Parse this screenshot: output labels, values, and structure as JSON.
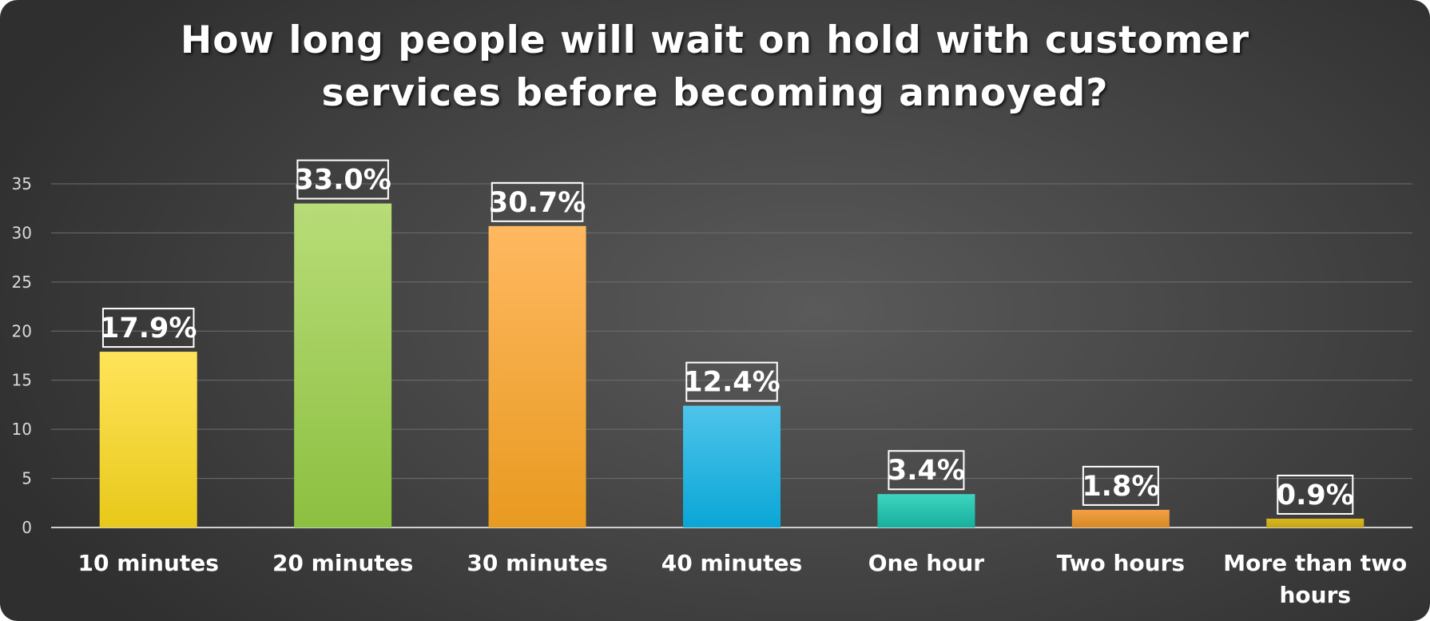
{
  "chart_data": {
    "type": "bar",
    "title_lines": [
      "How long people will wait on hold with customer",
      "services before becoming annoyed?"
    ],
    "xlabel": "",
    "ylabel": "",
    "categories": [
      "10 minutes",
      "20 minutes",
      "30 minutes",
      "40 minutes",
      "One hour",
      "Two hours",
      "More than two hours"
    ],
    "values": [
      17.9,
      33.0,
      30.7,
      12.4,
      3.4,
      1.8,
      0.9
    ],
    "data_labels": [
      "17.9%",
      "33.0%",
      "30.7%",
      "12.4%",
      "3.4%",
      "1.8%",
      "0.9%"
    ],
    "ylim": [
      0,
      35
    ],
    "yticks": [
      "0",
      "5",
      "10",
      "15",
      "20",
      "25",
      "30",
      "35"
    ],
    "grid": true,
    "legend": "none",
    "colors": [
      [
        "#ffe45a",
        "#e8c81a"
      ],
      [
        "#b8dc78",
        "#8cc040"
      ],
      [
        "#ffb860",
        "#e89a20"
      ],
      [
        "#4ec4ea",
        "#0aa6d6"
      ],
      [
        "#3ed4c0",
        "#16b09c"
      ],
      [
        "#f2a044",
        "#d88a26"
      ],
      [
        "#d8b820",
        "#c4a414"
      ]
    ]
  }
}
